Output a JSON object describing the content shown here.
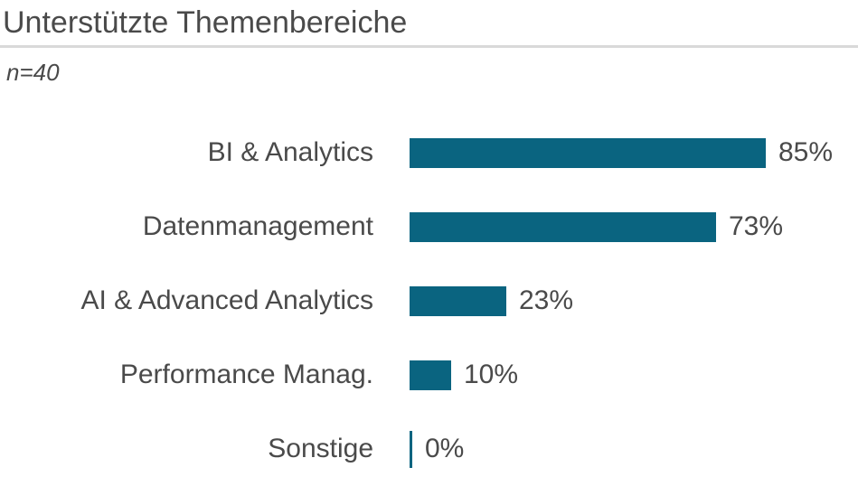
{
  "header": {
    "title": "Unterstützte Themenbereiche",
    "sample_label": "n=40"
  },
  "colors": {
    "bar": "#0a6480",
    "text": "#4a4a4a",
    "divider": "#d9d9d9"
  },
  "chart_data": {
    "type": "bar",
    "orientation": "horizontal",
    "title": "Unterstützte Themenbereiche",
    "subtitle": "n=40",
    "categories": [
      "BI & Analytics",
      "Datenmanagement",
      "AI & Advanced Analytics",
      "Performance Manag.",
      "Sonstige"
    ],
    "values": [
      85,
      73,
      23,
      10,
      0
    ],
    "value_labels": [
      "85%",
      "73%",
      "23%",
      "10%",
      "0%"
    ],
    "value_suffix": "%",
    "xlim": [
      0,
      100
    ],
    "grid": false,
    "legend": false,
    "bar_color": "#0a6480"
  }
}
